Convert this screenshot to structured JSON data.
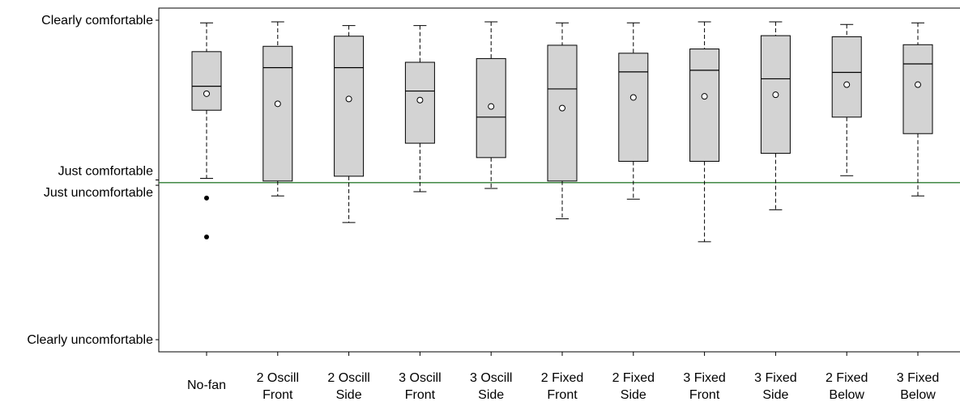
{
  "chart_data": {
    "type": "boxplot",
    "title": "",
    "xlabel": "",
    "ylabel": "",
    "y_scale": "ordinal comfort rating (Clearly uncomfortable = -3 ... Clearly comfortable = +3)",
    "ylim": [
      -3,
      3
    ],
    "y_ticks": [
      {
        "value": 3,
        "label": "Clearly comfortable"
      },
      {
        "value": 0,
        "label": "Just comfortable"
      },
      {
        "value": -0.1,
        "label": "Just uncomfortable"
      },
      {
        "value": -3,
        "label": "Clearly uncomfortable"
      }
    ],
    "reference_line": {
      "value": -0.05,
      "color": "#2e7d32"
    },
    "categories": [
      [
        "No-fan"
      ],
      [
        "2 Oscill",
        "Front"
      ],
      [
        "2 Oscill",
        "Side"
      ],
      [
        "3 Oscill",
        "Front"
      ],
      [
        "3 Oscill",
        "Side"
      ],
      [
        "2 Fixed",
        "Front"
      ],
      [
        "2 Fixed",
        "Side"
      ],
      [
        "3 Fixed",
        "Front"
      ],
      [
        "3 Fixed",
        "Side"
      ],
      [
        "2 Fixed",
        "Below"
      ],
      [
        "3 Fixed",
        "Below"
      ]
    ],
    "boxes": [
      {
        "min": 0.03,
        "q1": 1.31,
        "median": 1.76,
        "q3": 2.41,
        "max": 2.95,
        "mean": 1.62,
        "outliers": [
          -0.34,
          -1.07
        ]
      },
      {
        "min": -0.3,
        "q1": -0.02,
        "median": 2.11,
        "q3": 2.51,
        "max": 2.97,
        "mean": 1.43,
        "outliers": []
      },
      {
        "min": -0.8,
        "q1": 0.07,
        "median": 2.11,
        "q3": 2.7,
        "max": 2.9,
        "mean": 1.52,
        "outliers": []
      },
      {
        "min": -0.22,
        "q1": 0.69,
        "median": 1.67,
        "q3": 2.21,
        "max": 2.9,
        "mean": 1.5,
        "outliers": []
      },
      {
        "min": -0.16,
        "q1": 0.42,
        "median": 1.18,
        "q3": 2.28,
        "max": 2.97,
        "mean": 1.38,
        "outliers": []
      },
      {
        "min": -0.73,
        "q1": -0.02,
        "median": 1.71,
        "q3": 2.53,
        "max": 2.95,
        "mean": 1.35,
        "outliers": []
      },
      {
        "min": -0.36,
        "q1": 0.35,
        "median": 2.03,
        "q3": 2.38,
        "max": 2.95,
        "mean": 1.55,
        "outliers": []
      },
      {
        "min": -1.16,
        "q1": 0.35,
        "median": 2.06,
        "q3": 2.46,
        "max": 2.97,
        "mean": 1.57,
        "outliers": []
      },
      {
        "min": -0.56,
        "q1": 0.5,
        "median": 1.9,
        "q3": 2.71,
        "max": 2.97,
        "mean": 1.6,
        "outliers": []
      },
      {
        "min": 0.08,
        "q1": 1.18,
        "median": 2.02,
        "q3": 2.69,
        "max": 2.92,
        "mean": 1.79,
        "outliers": []
      },
      {
        "min": -0.3,
        "q1": 0.87,
        "median": 2.18,
        "q3": 2.54,
        "max": 2.95,
        "mean": 1.79,
        "outliers": []
      }
    ],
    "grid": false,
    "legend": "none",
    "colors": {
      "box_fill": "#d3d3d3",
      "stroke": "#000000",
      "reference_line": "#2e7d32"
    }
  }
}
